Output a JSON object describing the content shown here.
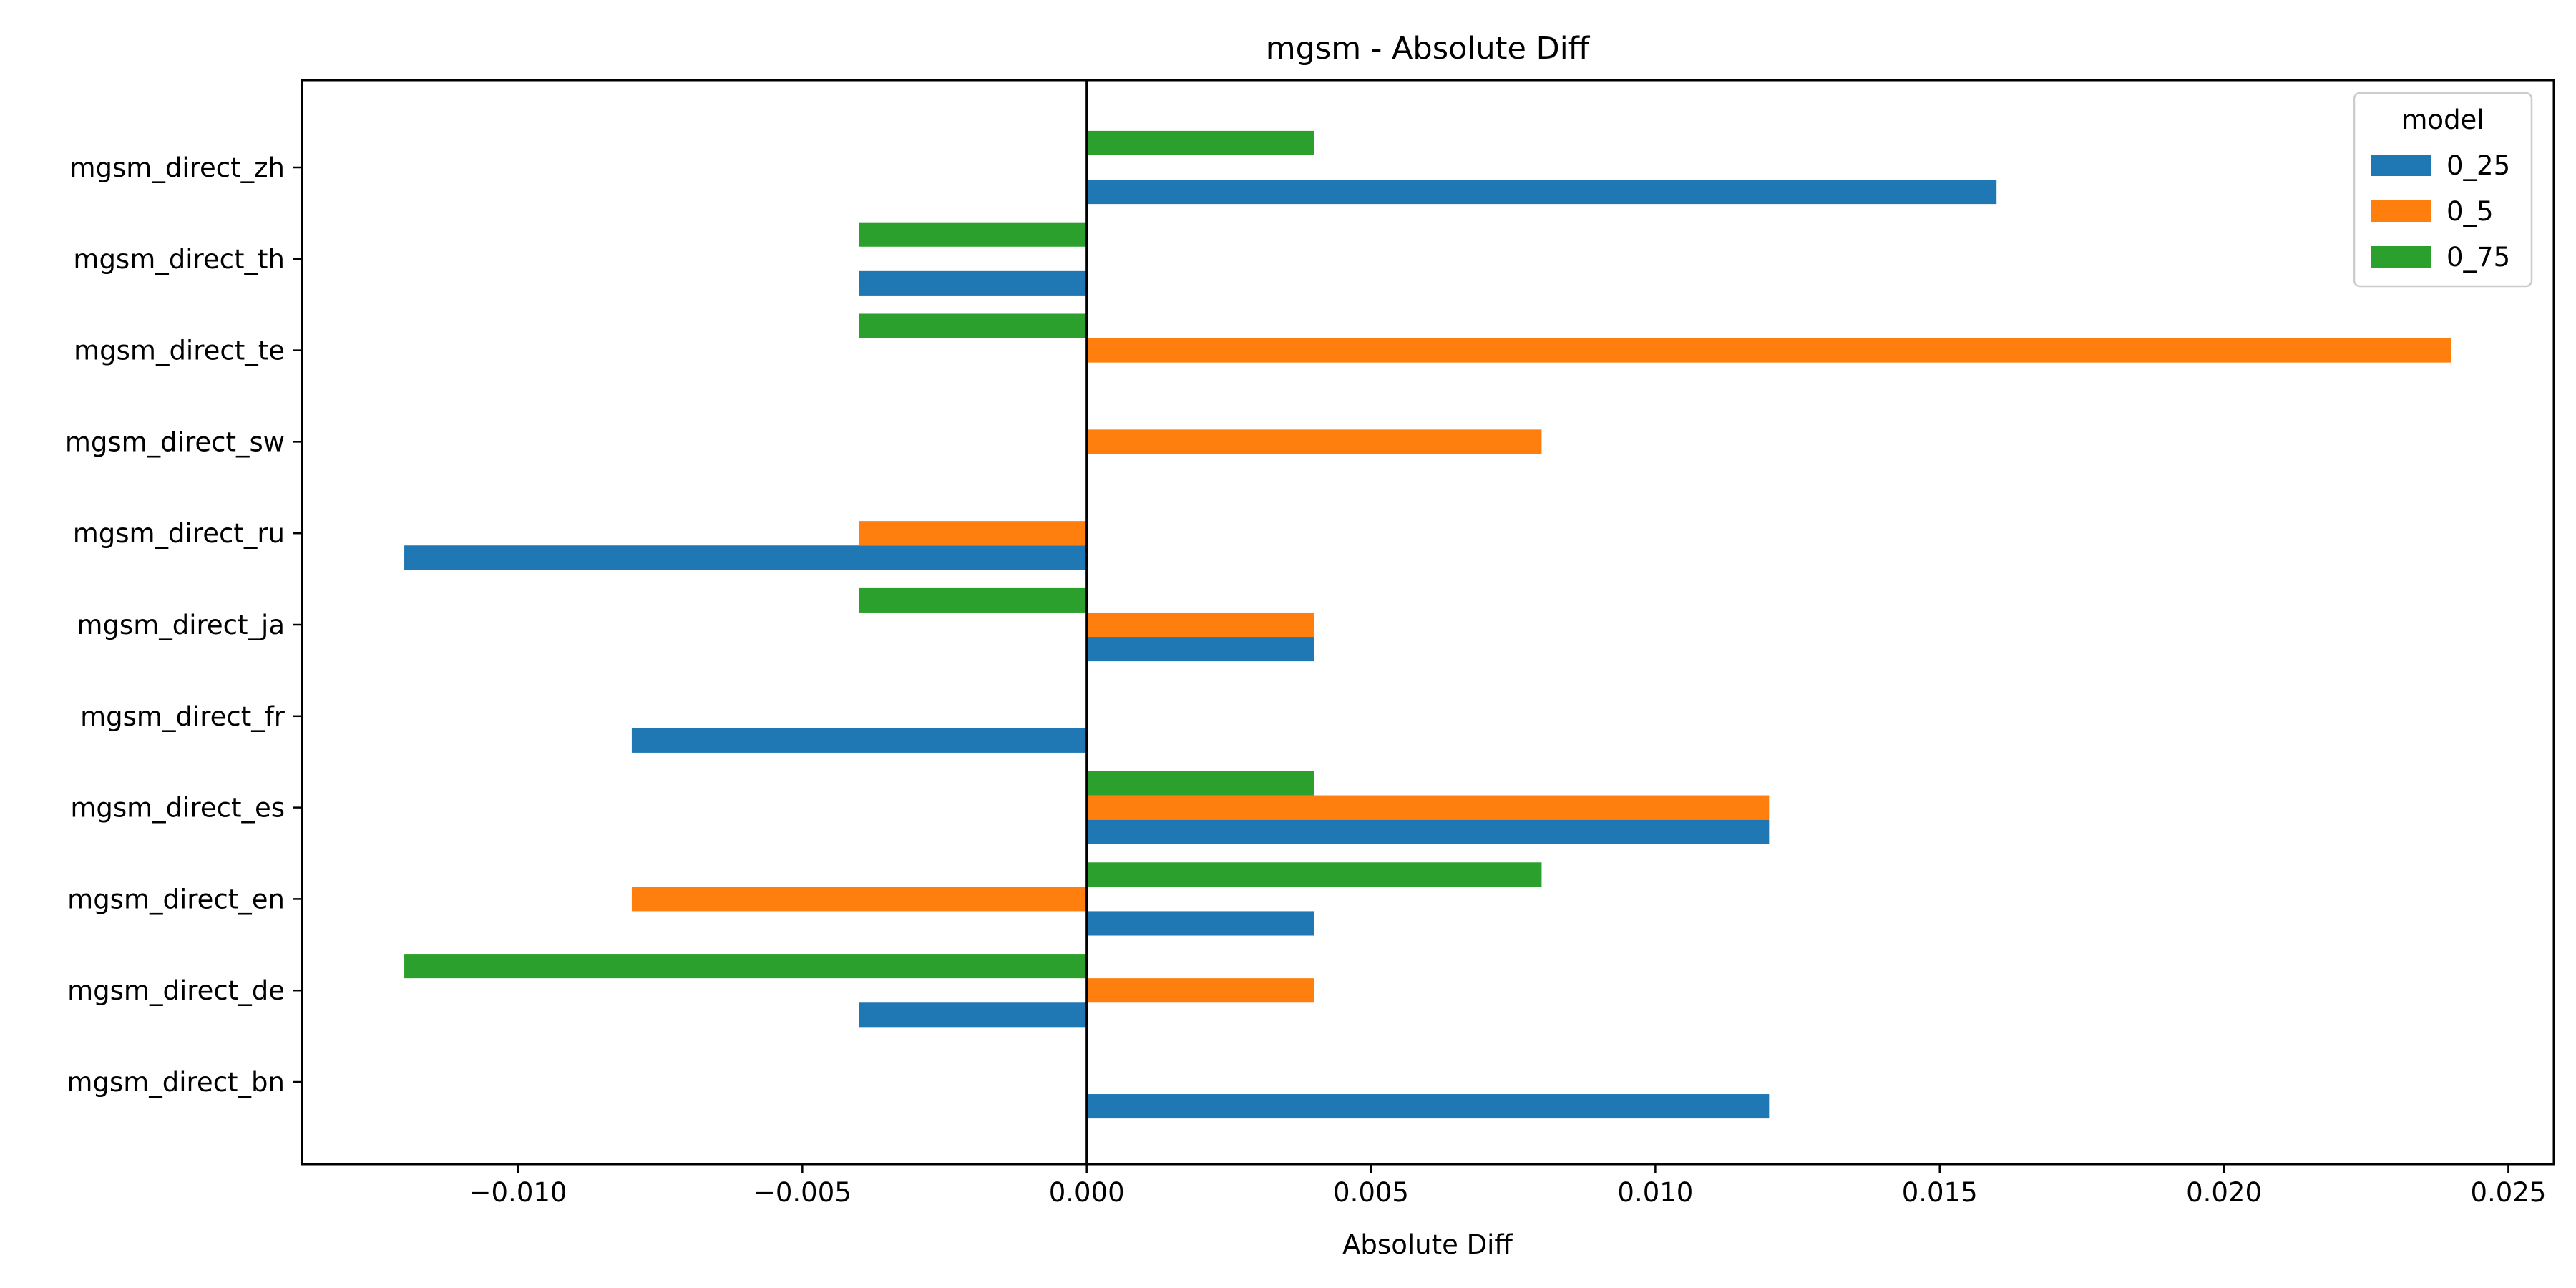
{
  "chart_data": {
    "type": "bar",
    "orientation": "horizontal",
    "title": "mgsm - Absolute Diff",
    "xlabel": "Absolute Diff",
    "ylabel": "",
    "categories": [
      "mgsm_direct_bn",
      "mgsm_direct_de",
      "mgsm_direct_en",
      "mgsm_direct_es",
      "mgsm_direct_fr",
      "mgsm_direct_ja",
      "mgsm_direct_ru",
      "mgsm_direct_sw",
      "mgsm_direct_te",
      "mgsm_direct_th",
      "mgsm_direct_zh"
    ],
    "series": [
      {
        "name": "0_25",
        "color": "#1f77b4",
        "values": [
          0.012,
          -0.004,
          0.004,
          0.012,
          -0.008,
          0.004,
          -0.012,
          0.0,
          0.0,
          -0.004,
          0.016
        ]
      },
      {
        "name": "0_5",
        "color": "#ff7f0e",
        "values": [
          0.0,
          0.004,
          -0.008,
          0.012,
          0.0,
          0.004,
          -0.004,
          0.008,
          0.024,
          0.0,
          0.0
        ]
      },
      {
        "name": "0_75",
        "color": "#2ca02c",
        "values": [
          0.0,
          -0.012,
          0.008,
          0.004,
          0.0,
          -0.004,
          0.0,
          0.0,
          -0.004,
          -0.004,
          0.004
        ]
      }
    ],
    "xlim": [
      -0.0138,
      0.0258
    ],
    "xticks": [
      -0.01,
      -0.005,
      0.0,
      0.005,
      0.01,
      0.015,
      0.02,
      0.025
    ],
    "xtick_labels": [
      "−0.010",
      "−0.005",
      "0.000",
      "0.005",
      "0.010",
      "0.015",
      "0.020",
      "0.025"
    ],
    "legend": {
      "title": "model",
      "placement": "top-right"
    },
    "zero_line": true,
    "grid": false
  }
}
